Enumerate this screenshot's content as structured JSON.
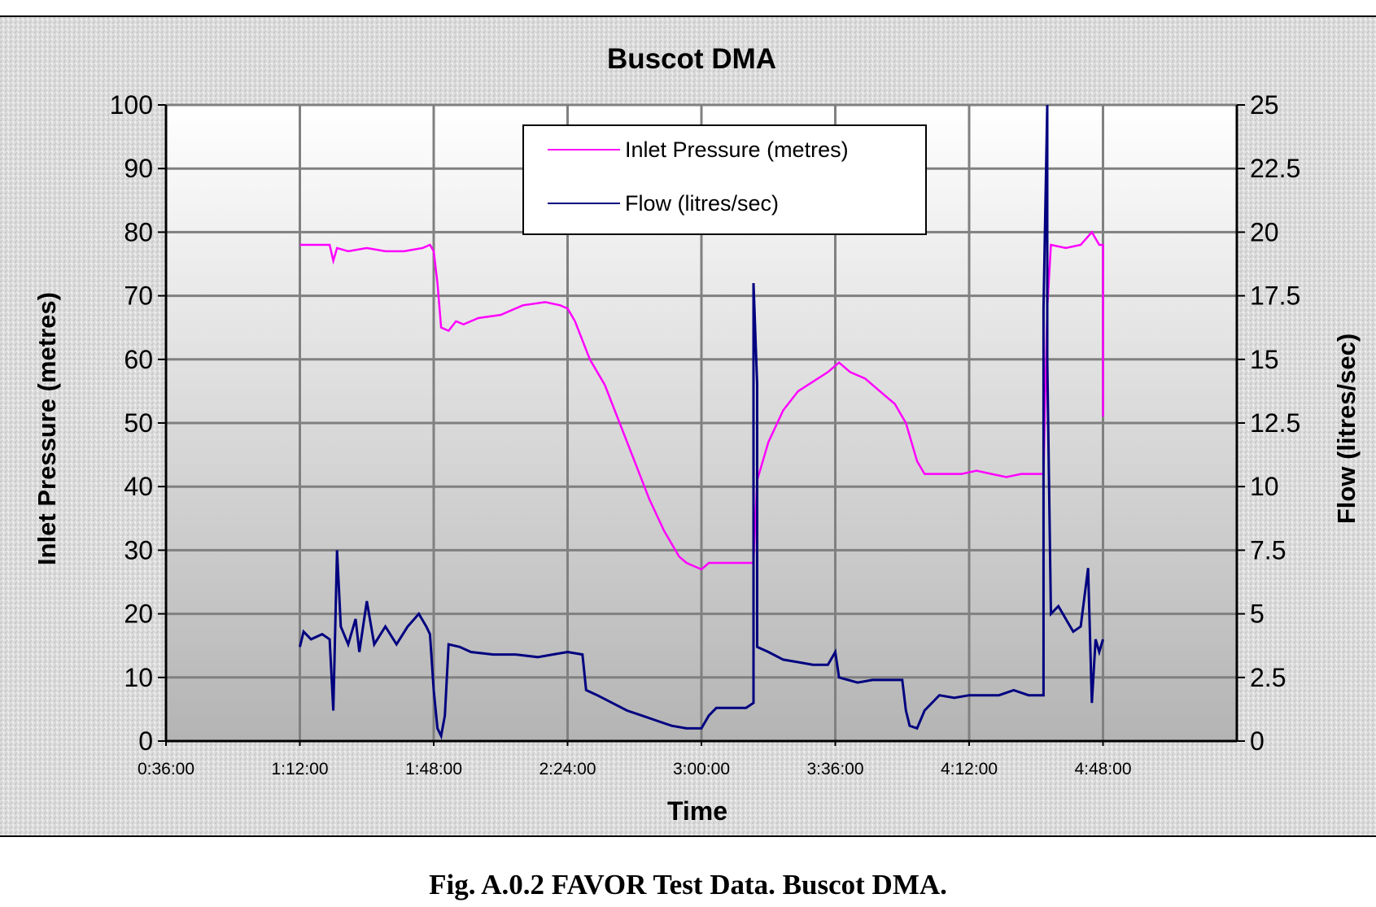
{
  "caption": "Fig. A.0.2 FAVOR Test Data. Buscot DMA.",
  "chart_data": {
    "type": "line",
    "title": "Buscot DMA",
    "xlabel": "Time",
    "ylabel": "Inlet Pressure (metres)",
    "y2label": "Flow (litres/sec)",
    "x_tick_labels": [
      "0:36:00",
      "1:12:00",
      "1:48:00",
      "2:24:00",
      "3:00:00",
      "3:36:00",
      "4:12:00",
      "4:48:00"
    ],
    "y_tick_labels": [
      "0",
      "10",
      "20",
      "30",
      "40",
      "50",
      "60",
      "70",
      "80",
      "90",
      "100"
    ],
    "y2_tick_labels": [
      "0",
      "2.5",
      "5",
      "7.5",
      "10",
      "12.5",
      "15",
      "17.5",
      "20",
      "22.5",
      "25"
    ],
    "xlim": [
      "0:36:00",
      "5:24:00"
    ],
    "ylim": [
      0,
      100
    ],
    "y2lim": [
      0,
      25
    ],
    "grid": true,
    "legend_position": "top-center",
    "colors": {
      "pressure": "#ff00ff",
      "flow": "#000080",
      "plot_bg_top": "#ffffff",
      "plot_bg_bottom": "#b4b4b4",
      "grid": "#808080"
    },
    "series": [
      {
        "name": "Inlet Pressure (metres)",
        "axis": "left",
        "color": "#ff00ff",
        "points": [
          [
            "1:12:00",
            78
          ],
          [
            "1:15:00",
            78
          ],
          [
            "1:18:00",
            78
          ],
          [
            "1:20:00",
            78
          ],
          [
            "1:21:00",
            75.5
          ],
          [
            "1:22:00",
            77.5
          ],
          [
            "1:25:00",
            77
          ],
          [
            "1:30:00",
            77.5
          ],
          [
            "1:35:00",
            77
          ],
          [
            "1:40:00",
            77
          ],
          [
            "1:45:00",
            77.5
          ],
          [
            "1:47:00",
            78
          ],
          [
            "1:48:00",
            77
          ],
          [
            "1:49:00",
            72
          ],
          [
            "1:50:00",
            65
          ],
          [
            "1:52:00",
            64.5
          ],
          [
            "1:54:00",
            66
          ],
          [
            "1:56:00",
            65.5
          ],
          [
            "2:00:00",
            66.5
          ],
          [
            "2:06:00",
            67
          ],
          [
            "2:12:00",
            68.5
          ],
          [
            "2:18:00",
            69
          ],
          [
            "2:22:00",
            68.5
          ],
          [
            "2:24:00",
            68
          ],
          [
            "2:26:00",
            66
          ],
          [
            "2:30:00",
            60
          ],
          [
            "2:34:00",
            56
          ],
          [
            "2:38:00",
            50
          ],
          [
            "2:42:00",
            44
          ],
          [
            "2:46:00",
            38
          ],
          [
            "2:50:00",
            33
          ],
          [
            "2:54:00",
            29
          ],
          [
            "2:56:00",
            28
          ],
          [
            "3:00:00",
            27
          ],
          [
            "3:02:00",
            28
          ],
          [
            "3:08:00",
            28
          ],
          [
            "3:14:00",
            28
          ],
          [
            "3:15:00",
            41
          ],
          [
            "3:18:00",
            47
          ],
          [
            "3:22:00",
            52
          ],
          [
            "3:26:00",
            55
          ],
          [
            "3:30:00",
            56.5
          ],
          [
            "3:34:00",
            58
          ],
          [
            "3:37:00",
            59.5
          ],
          [
            "3:40:00",
            58
          ],
          [
            "3:44:00",
            57
          ],
          [
            "3:48:00",
            55
          ],
          [
            "3:52:00",
            53
          ],
          [
            "3:55:00",
            50
          ],
          [
            "3:58:00",
            44
          ],
          [
            "4:00:00",
            42
          ],
          [
            "4:06:00",
            42
          ],
          [
            "4:10:00",
            42
          ],
          [
            "4:14:00",
            42.5
          ],
          [
            "4:18:00",
            42
          ],
          [
            "4:22:00",
            41.5
          ],
          [
            "4:26:00",
            42
          ],
          [
            "4:32:00",
            42
          ],
          [
            "4:33:00",
            68
          ],
          [
            "4:34:00",
            78
          ],
          [
            "4:38:00",
            77.5
          ],
          [
            "4:42:00",
            78
          ],
          [
            "4:45:00",
            80
          ],
          [
            "4:47:00",
            78
          ],
          [
            "4:48:00",
            78
          ],
          [
            "4:48:00",
            51
          ]
        ]
      },
      {
        "name": "Flow (litres/sec)",
        "axis": "right",
        "color": "#000080",
        "points": [
          [
            "1:12:00",
            3.7
          ],
          [
            "1:13:00",
            4.3
          ],
          [
            "1:15:00",
            4
          ],
          [
            "1:18:00",
            4.2
          ],
          [
            "1:20:00",
            4
          ],
          [
            "1:21:00",
            1.2
          ],
          [
            "1:22:00",
            7.5
          ],
          [
            "1:23:00",
            4.5
          ],
          [
            "1:25:00",
            3.8
          ],
          [
            "1:27:00",
            4.8
          ],
          [
            "1:28:00",
            3.5
          ],
          [
            "1:30:00",
            5.5
          ],
          [
            "1:32:00",
            3.8
          ],
          [
            "1:35:00",
            4.5
          ],
          [
            "1:38:00",
            3.8
          ],
          [
            "1:41:00",
            4.5
          ],
          [
            "1:44:00",
            5
          ],
          [
            "1:46:00",
            4.5
          ],
          [
            "1:47:00",
            4.2
          ],
          [
            "1:48:00",
            2
          ],
          [
            "1:49:00",
            0.5
          ],
          [
            "1:50:00",
            0.2
          ],
          [
            "1:51:00",
            1
          ],
          [
            "1:52:00",
            3.8
          ],
          [
            "1:55:00",
            3.7
          ],
          [
            "1:58:00",
            3.5
          ],
          [
            "2:04:00",
            3.4
          ],
          [
            "2:10:00",
            3.4
          ],
          [
            "2:16:00",
            3.3
          ],
          [
            "2:20:00",
            3.4
          ],
          [
            "2:24:00",
            3.5
          ],
          [
            "2:28:00",
            3.4
          ],
          [
            "2:29:00",
            2
          ],
          [
            "2:32:00",
            1.8
          ],
          [
            "2:36:00",
            1.5
          ],
          [
            "2:40:00",
            1.2
          ],
          [
            "2:44:00",
            1
          ],
          [
            "2:48:00",
            0.8
          ],
          [
            "2:52:00",
            0.6
          ],
          [
            "2:56:00",
            0.5
          ],
          [
            "3:00:00",
            0.5
          ],
          [
            "3:02:00",
            1
          ],
          [
            "3:04:00",
            1.3
          ],
          [
            "3:08:00",
            1.3
          ],
          [
            "3:12:00",
            1.3
          ],
          [
            "3:14:00",
            1.5
          ],
          [
            "3:14:00",
            18
          ],
          [
            "3:15:00",
            14
          ],
          [
            "3:15:00",
            3.7
          ],
          [
            "3:18:00",
            3.5
          ],
          [
            "3:22:00",
            3.2
          ],
          [
            "3:26:00",
            3.1
          ],
          [
            "3:30:00",
            3
          ],
          [
            "3:34:00",
            3
          ],
          [
            "3:36:00",
            3.5
          ],
          [
            "3:37:00",
            2.5
          ],
          [
            "3:42:00",
            2.3
          ],
          [
            "3:46:00",
            2.4
          ],
          [
            "3:50:00",
            2.4
          ],
          [
            "3:54:00",
            2.4
          ],
          [
            "3:55:00",
            1.2
          ],
          [
            "3:56:00",
            0.6
          ],
          [
            "3:58:00",
            0.5
          ],
          [
            "4:00:00",
            1.2
          ],
          [
            "4:04:00",
            1.8
          ],
          [
            "4:08:00",
            1.7
          ],
          [
            "4:12:00",
            1.8
          ],
          [
            "4:16:00",
            1.8
          ],
          [
            "4:20:00",
            1.8
          ],
          [
            "4:24:00",
            2
          ],
          [
            "4:28:00",
            1.8
          ],
          [
            "4:31:00",
            1.8
          ],
          [
            "4:32:00",
            1.8
          ],
          [
            "4:32:00",
            17
          ],
          [
            "4:33:00",
            25
          ],
          [
            "4:33:00",
            15
          ],
          [
            "4:34:00",
            5
          ],
          [
            "4:36:00",
            5.3
          ],
          [
            "4:38:00",
            4.8
          ],
          [
            "4:40:00",
            4.3
          ],
          [
            "4:42:00",
            4.5
          ],
          [
            "4:44:00",
            6.8
          ],
          [
            "4:45:00",
            1.5
          ],
          [
            "4:46:00",
            4
          ],
          [
            "4:47:00",
            3.5
          ],
          [
            "4:48:00",
            4
          ]
        ]
      }
    ]
  }
}
